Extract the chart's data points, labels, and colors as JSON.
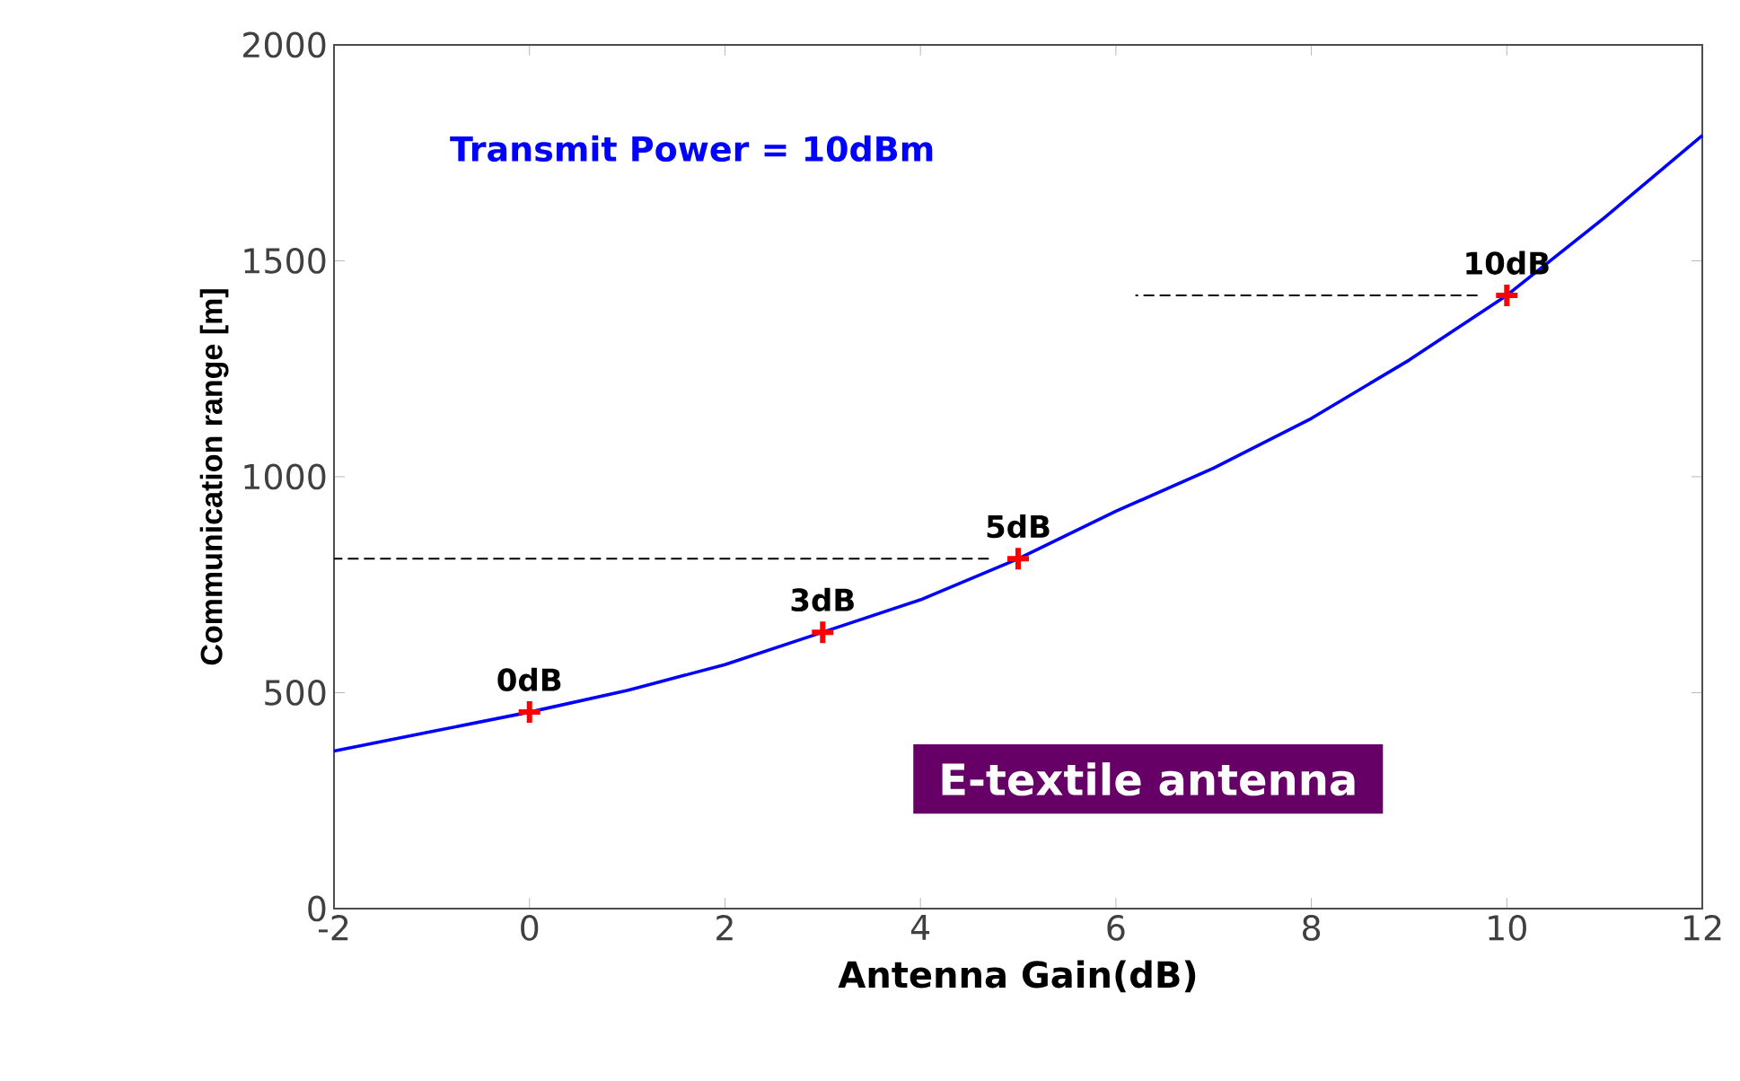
{
  "chart_data": {
    "type": "line",
    "xlabel": "Antenna Gain(dB)",
    "ylabel": "Communication range [m]",
    "xlim": [
      -2,
      12
    ],
    "ylim": [
      0,
      2000
    ],
    "xticks": [
      -2,
      0,
      2,
      4,
      6,
      8,
      10,
      12
    ],
    "yticks": [
      0,
      500,
      1000,
      1500,
      2000
    ],
    "grid": false,
    "series": [
      {
        "color": "#0000ff",
        "marker": "none",
        "x": [
          -2,
          -1,
          0,
          1,
          2,
          3,
          4,
          5,
          6,
          7,
          8,
          9,
          10,
          11,
          12
        ],
        "values": [
          365,
          410,
          455,
          505,
          565,
          640,
          715,
          810,
          920,
          1020,
          1135,
          1270,
          1420,
          1600,
          1790
        ]
      },
      {
        "type": "scatter",
        "color": "#ff0000",
        "marker": "cross",
        "x": [
          0,
          3,
          5,
          10
        ],
        "values": [
          455,
          640,
          810,
          1420
        ]
      },
      {
        "color": "#000000",
        "line_style": "dashed",
        "marker": "none",
        "x": [
          -2,
          4.7
        ],
        "values": [
          810,
          810
        ]
      },
      {
        "color": "#000000",
        "line_style": "dashed",
        "marker": "none",
        "x": [
          6.2,
          9.7
        ],
        "values": [
          1420,
          1420
        ]
      }
    ],
    "annotations": [
      "Transmit Power = 10dBm",
      "E-textile antenna",
      {
        "text": "0dB",
        "x": 0,
        "y": 455
      },
      {
        "text": "3dB",
        "x": 3,
        "y": 640
      },
      {
        "text": "5dB",
        "x": 5,
        "y": 810
      },
      {
        "text": "10dB",
        "x": 10,
        "y": 1420
      }
    ]
  }
}
